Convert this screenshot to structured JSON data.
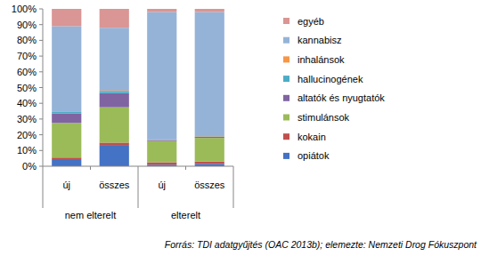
{
  "chart_data": {
    "type": "bar",
    "stacked": true,
    "grid": false,
    "legend": "right",
    "data_labels": false,
    "categories": [
      "új",
      "összes",
      "új",
      "összes"
    ],
    "groups": [
      "nem elterelt",
      "nem elterelt",
      "elterelt",
      "elterelt"
    ],
    "ylim": [
      0,
      100
    ],
    "yticks": [
      {
        "value": 0,
        "label": "0%"
      },
      {
        "value": 10,
        "label": "10%"
      },
      {
        "value": 20,
        "label": "20%"
      },
      {
        "value": 30,
        "label": "30%"
      },
      {
        "value": 40,
        "label": "40%"
      },
      {
        "value": 50,
        "label": "50%"
      },
      {
        "value": 60,
        "label": "60%"
      },
      {
        "value": 70,
        "label": "70%"
      },
      {
        "value": 80,
        "label": "80%"
      },
      {
        "value": 90,
        "label": "90%"
      },
      {
        "value": 100,
        "label": "100%"
      }
    ],
    "series": [
      {
        "name": "opiátok",
        "color": "#4472c4",
        "values": [
          4.5,
          13.5,
          1,
          1.5
        ]
      },
      {
        "name": "kokain",
        "color": "#c0504d",
        "values": [
          1,
          1.5,
          1.5,
          1.5
        ]
      },
      {
        "name": "stimulánsok",
        "color": "#9bbb59",
        "values": [
          22,
          22.5,
          13.5,
          15
        ]
      },
      {
        "name": "altatók és nyugtatók",
        "color": "#8064a2",
        "values": [
          6,
          9,
          0.5,
          0.7
        ]
      },
      {
        "name": "hallucinogének",
        "color": "#4bacc6",
        "values": [
          1,
          1,
          0.3,
          0.3
        ]
      },
      {
        "name": "inhalánsok",
        "color": "#f79646",
        "values": [
          0.5,
          0.5,
          0.2,
          0.2
        ]
      },
      {
        "name": "kannabisz",
        "color": "#95b3d7",
        "values": [
          54,
          40,
          81,
          78.8
        ]
      },
      {
        "name": "egyéb",
        "color": "#d99694",
        "values": [
          11,
          12,
          2,
          2
        ]
      }
    ],
    "source": "Forrás: TDI adatgyűjtés (OAC 2013b); elemezte: Nemzeti Drog Fókuszpont"
  }
}
